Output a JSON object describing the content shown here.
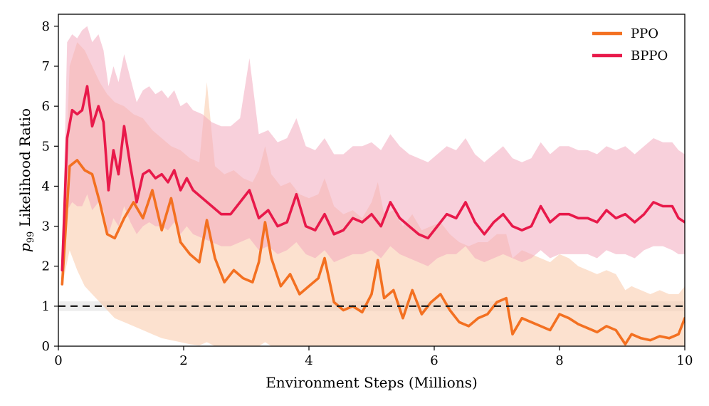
{
  "chart_data": {
    "type": "line",
    "xlabel": "Environment Steps (Millions)",
    "ylabel_math": "p",
    "ylabel_sub": "99",
    "ylabel_rest": " Likelihood Ratio",
    "xlim": [
      0,
      10
    ],
    "ylim": [
      0,
      8.3
    ],
    "xticks": [
      0,
      2,
      4,
      6,
      8,
      10
    ],
    "yticks": [
      0,
      1,
      2,
      3,
      4,
      5,
      6,
      7,
      8
    ],
    "grid": false,
    "legend_position": "top-right",
    "reference_line": {
      "y": 1,
      "style": "dashed",
      "color": "#222222"
    },
    "series": [
      {
        "name": "PPO",
        "color": "#f37021",
        "band_color": "#f9c8a8",
        "x": [
          0.06,
          0.18,
          0.3,
          0.42,
          0.54,
          0.66,
          0.78,
          0.9,
          1.05,
          1.2,
          1.35,
          1.5,
          1.65,
          1.8,
          1.95,
          2.1,
          2.25,
          2.37,
          2.5,
          2.65,
          2.8,
          2.95,
          3.1,
          3.2,
          3.3,
          3.4,
          3.55,
          3.7,
          3.85,
          4.0,
          4.15,
          4.25,
          4.4,
          4.55,
          4.7,
          4.85,
          5.0,
          5.1,
          5.2,
          5.35,
          5.5,
          5.65,
          5.8,
          5.95,
          6.1,
          6.25,
          6.4,
          6.55,
          6.7,
          6.85,
          7.0,
          7.15,
          7.25,
          7.4,
          7.55,
          7.7,
          7.85,
          8.0,
          8.15,
          8.3,
          8.45,
          8.6,
          8.75,
          8.9,
          9.05,
          9.15,
          9.3,
          9.45,
          9.6,
          9.75,
          9.9,
          10.0
        ],
        "y": [
          1.55,
          4.5,
          4.65,
          4.4,
          4.3,
          3.6,
          2.8,
          2.7,
          3.2,
          3.6,
          3.2,
          3.9,
          2.9,
          3.7,
          2.6,
          2.3,
          2.1,
          3.15,
          2.2,
          1.6,
          1.9,
          1.7,
          1.6,
          2.1,
          3.1,
          2.2,
          1.5,
          1.8,
          1.3,
          1.5,
          1.7,
          2.2,
          1.1,
          0.9,
          1.0,
          0.85,
          1.3,
          2.15,
          1.2,
          1.4,
          0.7,
          1.4,
          0.8,
          1.1,
          1.3,
          0.9,
          0.6,
          0.5,
          0.7,
          0.8,
          1.1,
          1.2,
          0.3,
          0.7,
          0.6,
          0.5,
          0.4,
          0.8,
          0.7,
          0.55,
          0.45,
          0.35,
          0.5,
          0.4,
          0.05,
          0.3,
          0.2,
          0.15,
          0.25,
          0.2,
          0.3,
          0.7
        ],
        "lower": [
          1.5,
          2.4,
          1.9,
          1.5,
          1.3,
          1.1,
          0.9,
          0.7,
          0.6,
          0.5,
          0.4,
          0.3,
          0.2,
          0.15,
          0.1,
          0.05,
          0.02,
          0.1,
          0.0,
          0.0,
          0.0,
          0.0,
          0.0,
          0.0,
          0.1,
          0.0,
          0.0,
          0.0,
          0.0,
          0.0,
          0.0,
          0.0,
          0.0,
          0.0,
          0.0,
          0.0,
          0.0,
          0.0,
          0.0,
          0.0,
          0.0,
          0.0,
          0.0,
          0.0,
          0.0,
          0.0,
          0.0,
          0.0,
          0.0,
          0.0,
          0.0,
          0.0,
          0.0,
          0.0,
          0.0,
          0.0,
          0.0,
          0.0,
          0.0,
          0.0,
          0.0,
          0.0,
          0.0,
          0.0,
          0.0,
          0.0,
          0.0,
          0.0,
          0.0,
          0.0,
          0.0,
          0.0
        ],
        "upper": [
          2.0,
          7.0,
          7.6,
          7.4,
          7.0,
          6.6,
          6.3,
          6.1,
          6.0,
          5.8,
          5.7,
          5.4,
          5.2,
          5.0,
          4.9,
          4.7,
          4.6,
          6.6,
          4.5,
          4.3,
          4.4,
          4.2,
          4.1,
          4.4,
          5.0,
          4.3,
          4.0,
          4.1,
          3.8,
          3.7,
          3.8,
          4.2,
          3.5,
          3.3,
          3.4,
          3.2,
          3.6,
          4.1,
          3.3,
          3.4,
          3.0,
          3.3,
          2.9,
          3.0,
          3.1,
          2.8,
          2.6,
          2.5,
          2.6,
          2.6,
          2.8,
          2.8,
          2.2,
          2.4,
          2.3,
          2.2,
          2.1,
          2.3,
          2.2,
          2.0,
          1.9,
          1.8,
          1.9,
          1.8,
          1.4,
          1.5,
          1.4,
          1.3,
          1.4,
          1.3,
          1.3,
          1.5
        ]
      },
      {
        "name": "BPPO",
        "color": "#e8194a",
        "band_color": "#f3a9bd",
        "x": [
          0.06,
          0.14,
          0.22,
          0.3,
          0.38,
          0.46,
          0.54,
          0.64,
          0.72,
          0.8,
          0.88,
          0.96,
          1.05,
          1.15,
          1.25,
          1.35,
          1.45,
          1.55,
          1.65,
          1.75,
          1.85,
          1.95,
          2.05,
          2.15,
          2.3,
          2.45,
          2.6,
          2.75,
          2.9,
          3.05,
          3.2,
          3.35,
          3.5,
          3.65,
          3.8,
          3.95,
          4.1,
          4.25,
          4.4,
          4.55,
          4.7,
          4.85,
          5.0,
          5.15,
          5.3,
          5.45,
          5.6,
          5.75,
          5.9,
          6.05,
          6.2,
          6.35,
          6.5,
          6.65,
          6.8,
          6.95,
          7.1,
          7.25,
          7.4,
          7.55,
          7.7,
          7.85,
          8.0,
          8.15,
          8.3,
          8.45,
          8.6,
          8.75,
          8.9,
          9.05,
          9.2,
          9.35,
          9.5,
          9.65,
          9.8,
          9.9,
          10.0
        ],
        "y": [
          1.9,
          5.2,
          5.9,
          5.8,
          5.9,
          6.5,
          5.5,
          6.0,
          5.6,
          3.9,
          4.9,
          4.3,
          5.5,
          4.5,
          3.6,
          4.3,
          4.4,
          4.2,
          4.3,
          4.1,
          4.4,
          3.9,
          4.2,
          3.9,
          3.7,
          3.5,
          3.3,
          3.3,
          3.6,
          3.9,
          3.2,
          3.4,
          3.0,
          3.1,
          3.8,
          3.0,
          2.9,
          3.3,
          2.8,
          2.9,
          3.2,
          3.1,
          3.3,
          3.0,
          3.6,
          3.2,
          3.0,
          2.8,
          2.7,
          3.0,
          3.3,
          3.2,
          3.6,
          3.1,
          2.8,
          3.1,
          3.3,
          3.0,
          2.9,
          3.0,
          3.5,
          3.1,
          3.3,
          3.3,
          3.2,
          3.2,
          3.1,
          3.4,
          3.2,
          3.3,
          3.1,
          3.3,
          3.6,
          3.5,
          3.5,
          3.2,
          3.1
        ],
        "lower": [
          1.8,
          3.4,
          3.6,
          3.5,
          3.5,
          3.8,
          3.4,
          3.6,
          3.4,
          2.8,
          3.2,
          3.0,
          3.5,
          3.1,
          2.8,
          3.0,
          3.1,
          3.0,
          3.0,
          2.9,
          3.1,
          2.8,
          3.0,
          2.8,
          2.7,
          2.6,
          2.5,
          2.5,
          2.6,
          2.7,
          2.4,
          2.5,
          2.3,
          2.4,
          2.6,
          2.3,
          2.2,
          2.4,
          2.1,
          2.2,
          2.3,
          2.3,
          2.4,
          2.2,
          2.5,
          2.3,
          2.2,
          2.1,
          2.0,
          2.2,
          2.3,
          2.3,
          2.5,
          2.2,
          2.1,
          2.2,
          2.3,
          2.2,
          2.1,
          2.2,
          2.4,
          2.2,
          2.3,
          2.3,
          2.3,
          2.3,
          2.2,
          2.4,
          2.3,
          2.3,
          2.2,
          2.4,
          2.5,
          2.5,
          2.4,
          2.3,
          2.3
        ],
        "upper": [
          2.1,
          7.6,
          7.8,
          7.7,
          7.9,
          8.0,
          7.6,
          7.8,
          7.4,
          6.5,
          7.0,
          6.6,
          7.3,
          6.7,
          6.1,
          6.4,
          6.5,
          6.3,
          6.4,
          6.2,
          6.4,
          6.0,
          6.1,
          5.9,
          5.8,
          5.6,
          5.5,
          5.5,
          5.7,
          7.2,
          5.3,
          5.4,
          5.1,
          5.2,
          5.7,
          5.0,
          4.9,
          5.2,
          4.8,
          4.8,
          5.0,
          5.0,
          5.1,
          4.9,
          5.3,
          5.0,
          4.8,
          4.7,
          4.6,
          4.8,
          5.0,
          4.9,
          5.2,
          4.8,
          4.6,
          4.8,
          5.0,
          4.7,
          4.6,
          4.7,
          5.1,
          4.8,
          5.0,
          5.0,
          4.9,
          4.9,
          4.8,
          5.0,
          4.9,
          5.0,
          4.8,
          5.0,
          5.2,
          5.1,
          5.1,
          4.9,
          4.8
        ]
      }
    ]
  }
}
